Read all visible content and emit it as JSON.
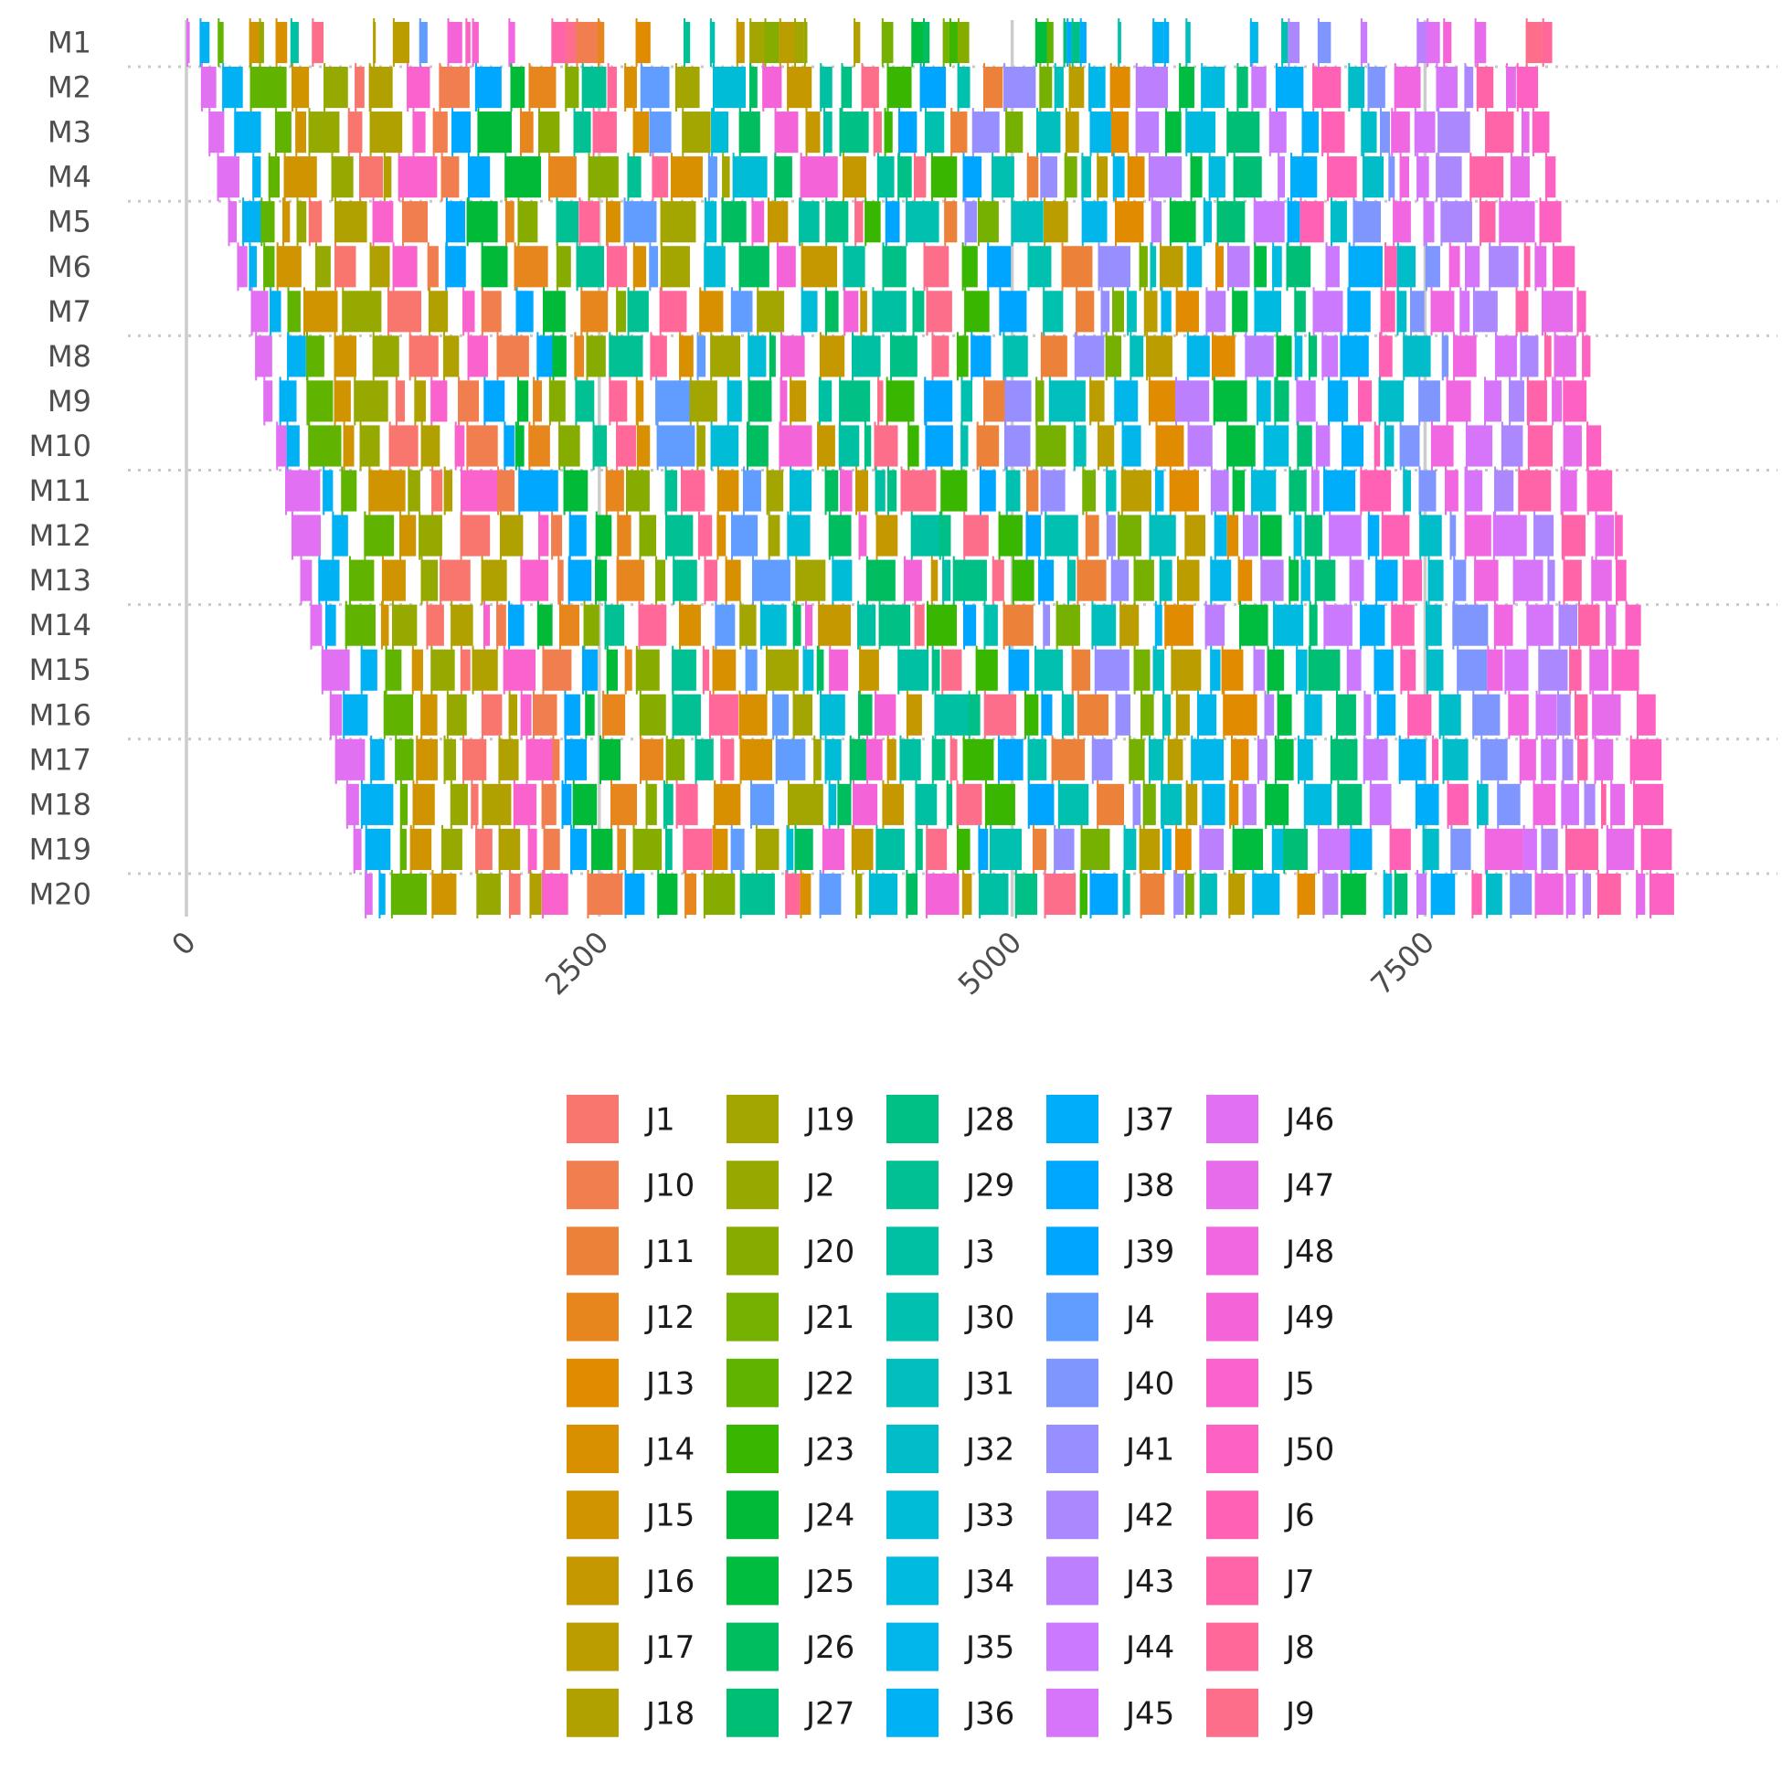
{
  "chart_data": {
    "type": "gantt",
    "title": "",
    "xlabel": "",
    "ylabel": "",
    "x_range": [
      -350,
      9800
    ],
    "x_ticks": [
      0,
      2500,
      5000,
      7500
    ],
    "x_tick_labels": [
      "0",
      "2500",
      "5000",
      "7500"
    ],
    "grid": {
      "major_x": true,
      "y_row_separators": "dotted"
    },
    "legend_position": "bottom",
    "machines": [
      "M1",
      "M2",
      "M3",
      "M4",
      "M5",
      "M6",
      "M7",
      "M8",
      "M9",
      "M10",
      "M11",
      "M12",
      "M13",
      "M14",
      "M15",
      "M16",
      "M17",
      "M18",
      "M19",
      "M20"
    ],
    "makespan": 9140,
    "jobs": [
      {
        "name": "J1",
        "color": "#F8766D"
      },
      {
        "name": "J10",
        "color": "#F17E4E"
      },
      {
        "name": "J11",
        "color": "#EC8239"
      },
      {
        "name": "J12",
        "color": "#E6861D"
      },
      {
        "name": "J13",
        "color": "#E08B00"
      },
      {
        "name": "J14",
        "color": "#D89000"
      },
      {
        "name": "J15",
        "color": "#CF9400"
      },
      {
        "name": "J16",
        "color": "#C69800"
      },
      {
        "name": "J17",
        "color": "#BB9D00"
      },
      {
        "name": "J18",
        "color": "#B0A100"
      },
      {
        "name": "J19",
        "color": "#A3A500"
      },
      {
        "name": "J2",
        "color": "#96A900"
      },
      {
        "name": "J20",
        "color": "#87AC00"
      },
      {
        "name": "J21",
        "color": "#76B000"
      },
      {
        "name": "J22",
        "color": "#60B400"
      },
      {
        "name": "J23",
        "color": "#39B600"
      },
      {
        "name": "J24",
        "color": "#00BA38"
      },
      {
        "name": "J25",
        "color": "#00BC3F"
      },
      {
        "name": "J26",
        "color": "#00BD5F"
      },
      {
        "name": "J27",
        "color": "#00BF74"
      },
      {
        "name": "J28",
        "color": "#00C085"
      },
      {
        "name": "J29",
        "color": "#00C094"
      },
      {
        "name": "J3",
        "color": "#00C0A3"
      },
      {
        "name": "J30",
        "color": "#00C0AF"
      },
      {
        "name": "J31",
        "color": "#00BFBC"
      },
      {
        "name": "J32",
        "color": "#00BDC9"
      },
      {
        "name": "J33",
        "color": "#00BCD6"
      },
      {
        "name": "J34",
        "color": "#00BAE0"
      },
      {
        "name": "J35",
        "color": "#00B6EB"
      },
      {
        "name": "J36",
        "color": "#00B2F3"
      },
      {
        "name": "J37",
        "color": "#00ADFA"
      },
      {
        "name": "J38",
        "color": "#00A7FF"
      },
      {
        "name": "J39",
        "color": "#00A5FF"
      },
      {
        "name": "J4",
        "color": "#619CFF"
      },
      {
        "name": "J40",
        "color": "#7F96FF"
      },
      {
        "name": "J41",
        "color": "#978FFF"
      },
      {
        "name": "J42",
        "color": "#AC88FF"
      },
      {
        "name": "J43",
        "color": "#BC80FF"
      },
      {
        "name": "J44",
        "color": "#CB79FF"
      },
      {
        "name": "J45",
        "color": "#D675F9"
      },
      {
        "name": "J46",
        "color": "#E170F2"
      },
      {
        "name": "J47",
        "color": "#E76CEB"
      },
      {
        "name": "J48",
        "color": "#F067E1"
      },
      {
        "name": "J49",
        "color": "#F563D8"
      },
      {
        "name": "J5",
        "color": "#FA62CD"
      },
      {
        "name": "J50",
        "color": "#FD61C1"
      },
      {
        "name": "J6",
        "color": "#FF62B5"
      },
      {
        "name": "J7",
        "color": "#FF64A8"
      },
      {
        "name": "J8",
        "color": "#FF6899"
      },
      {
        "name": "J9",
        "color": "#FC6E89"
      }
    ],
    "sequence_order": [
      "J46",
      "J36",
      "J22",
      "J15",
      "J2",
      "J1",
      "J18",
      "J5",
      "J10",
      "J38",
      "J24",
      "J12",
      "J20",
      "J29",
      "J8",
      "J14",
      "J4",
      "J19",
      "J33",
      "J26",
      "J49",
      "J16",
      "J3",
      "J28",
      "J9",
      "J23",
      "J39",
      "J30",
      "J11",
      "J41",
      "J21",
      "J31",
      "J17",
      "J35",
      "J13",
      "J43",
      "J25",
      "J34",
      "J27",
      "J44",
      "J37",
      "J6",
      "J32",
      "J40",
      "J48",
      "J45",
      "J42",
      "J7",
      "J47",
      "J50"
    ],
    "first_machine_bars": [
      {
        "job": "J46",
        "start": 0,
        "end": 20
      },
      {
        "job": "J36",
        "start": 80,
        "end": 140
      },
      {
        "job": "J22",
        "start": 190,
        "end": 225
      },
      {
        "job": "J15",
        "start": 380,
        "end": 460
      },
      {
        "job": "J2",
        "start": 440,
        "end": 470
      },
      {
        "job": "J14",
        "start": 540,
        "end": 610
      },
      {
        "job": "J3",
        "start": 630,
        "end": 680
      },
      {
        "job": "J9",
        "start": 760,
        "end": 830
      },
      {
        "job": "J18",
        "start": 1130,
        "end": 1140
      },
      {
        "job": "J17",
        "start": 1250,
        "end": 1350
      },
      {
        "job": "J4",
        "start": 1410,
        "end": 1460
      },
      {
        "job": "J49",
        "start": 1580,
        "end": 1670
      },
      {
        "job": "J50",
        "start": 1690,
        "end": 1720
      },
      {
        "job": "J5",
        "start": 1730,
        "end": 1770
      },
      {
        "job": "J48",
        "start": 1950,
        "end": 1990
      },
      {
        "job": "J7",
        "start": 2210,
        "end": 2300
      },
      {
        "job": "J9",
        "start": 2300,
        "end": 2360
      },
      {
        "job": "J10",
        "start": 2360,
        "end": 2490
      },
      {
        "job": "J12",
        "start": 2490,
        "end": 2530
      },
      {
        "job": "J13",
        "start": 2720,
        "end": 2810
      },
      {
        "job": "J29",
        "start": 3010,
        "end": 3050
      },
      {
        "job": "J30",
        "start": 3170,
        "end": 3200
      },
      {
        "job": "J16",
        "start": 3330,
        "end": 3380
      },
      {
        "job": "J19",
        "start": 3410,
        "end": 3500
      },
      {
        "job": "J20",
        "start": 3500,
        "end": 3590
      },
      {
        "job": "J17",
        "start": 3590,
        "end": 3680
      },
      {
        "job": "J19",
        "start": 3680,
        "end": 3740
      },
      {
        "job": "J2",
        "start": 3740,
        "end": 3760
      },
      {
        "job": "J18",
        "start": 4040,
        "end": 4080
      },
      {
        "job": "J21",
        "start": 4210,
        "end": 4280
      },
      {
        "job": "J25",
        "start": 4390,
        "end": 4460
      },
      {
        "job": "J26",
        "start": 4460,
        "end": 4500
      },
      {
        "job": "J21",
        "start": 4580,
        "end": 4620
      },
      {
        "job": "J23",
        "start": 4620,
        "end": 4670
      },
      {
        "job": "J20",
        "start": 4670,
        "end": 4740
      },
      {
        "job": "J25",
        "start": 5140,
        "end": 5210
      },
      {
        "job": "J22",
        "start": 5210,
        "end": 5250
      },
      {
        "job": "J27",
        "start": 5310,
        "end": 5330
      },
      {
        "job": "J38",
        "start": 5330,
        "end": 5360
      },
      {
        "job": "J28",
        "start": 5360,
        "end": 5410
      },
      {
        "job": "J37",
        "start": 5410,
        "end": 5450
      },
      {
        "job": "J30",
        "start": 5640,
        "end": 5660
      },
      {
        "job": "J36",
        "start": 5850,
        "end": 5920
      },
      {
        "job": "J37",
        "start": 5920,
        "end": 5950
      },
      {
        "job": "J31",
        "start": 6050,
        "end": 6080
      },
      {
        "job": "J35",
        "start": 6440,
        "end": 6490
      },
      {
        "job": "J30",
        "start": 6630,
        "end": 6670
      },
      {
        "job": "J42",
        "start": 6670,
        "end": 6740
      },
      {
        "job": "J40",
        "start": 6850,
        "end": 6930
      },
      {
        "job": "J44",
        "start": 7110,
        "end": 7150
      },
      {
        "job": "J43",
        "start": 7450,
        "end": 7510
      },
      {
        "job": "J46",
        "start": 7510,
        "end": 7590
      },
      {
        "job": "J49",
        "start": 7610,
        "end": 7660
      },
      {
        "job": "J47",
        "start": 7800,
        "end": 7870
      },
      {
        "job": "J9",
        "start": 8110,
        "end": 8210
      },
      {
        "job": "J8",
        "start": 8210,
        "end": 8270
      }
    ]
  }
}
